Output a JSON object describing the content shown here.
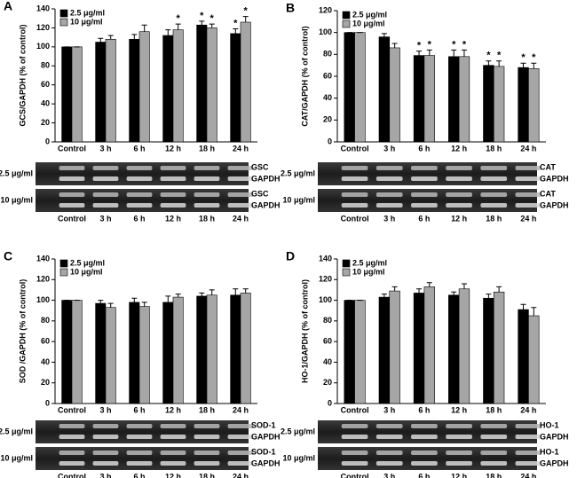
{
  "chart_data": [
    {
      "type": "bar",
      "panel": "A",
      "y_label": "GCS/GAPDH (% of control)",
      "categories": [
        "Control",
        "3 h",
        "6 h",
        "12 h",
        "18 h",
        "24 h"
      ],
      "series": [
        {
          "name": "2.5 μg/ml",
          "color": "#000000",
          "values": [
            100,
            105,
            108,
            112,
            123,
            114
          ],
          "errors": [
            0,
            4,
            5,
            6,
            4,
            5
          ]
        },
        {
          "name": "10 μg/ml",
          "color": "#a6a6a6",
          "values": [
            100,
            108,
            116,
            118,
            120,
            126
          ],
          "errors": [
            0,
            4,
            7,
            6,
            4,
            6
          ]
        }
      ],
      "ylim": [
        0,
        140
      ],
      "yticks": [
        0,
        20,
        40,
        60,
        80,
        100,
        120,
        140
      ],
      "annotations": [
        {
          "text": "*",
          "category": "12 h",
          "series": "10 μg/ml"
        },
        {
          "text": "*",
          "category": "18 h",
          "series": "2.5 μg/ml"
        },
        {
          "text": "*",
          "category": "18 h",
          "series": "10 μg/ml"
        },
        {
          "text": "*",
          "category": "24 h",
          "series": "2.5 μg/ml"
        },
        {
          "text": "*",
          "category": "24 h",
          "series": "10 μg/ml"
        }
      ],
      "blot": {
        "rows": [
          {
            "label": "2.5 μg/ml",
            "bands": [
              "GSC",
              "GAPDH"
            ]
          },
          {
            "label": "10 μg/ml",
            "bands": [
              "GSC",
              "GAPDH"
            ]
          }
        ]
      }
    },
    {
      "type": "bar",
      "panel": "B",
      "y_label": "CAT/GAPDH (% of control)",
      "categories": [
        "Control",
        "3 h",
        "6 h",
        "12 h",
        "18 h",
        "24 h"
      ],
      "series": [
        {
          "name": "2.5 μg/ml",
          "color": "#000000",
          "values": [
            100,
            96,
            79,
            78,
            70,
            68
          ],
          "errors": [
            0,
            3,
            4,
            6,
            4,
            4
          ]
        },
        {
          "name": "10 μg/ml",
          "color": "#a6a6a6",
          "values": [
            100,
            86,
            79,
            78,
            69,
            67
          ],
          "errors": [
            0,
            4,
            5,
            6,
            5,
            5
          ]
        }
      ],
      "ylim": [
        0,
        120
      ],
      "yticks": [
        0,
        20,
        40,
        60,
        80,
        100,
        120
      ],
      "annotations": [
        {
          "text": "*",
          "category": "6 h",
          "series": "2.5 μg/ml"
        },
        {
          "text": "*",
          "category": "6 h",
          "series": "10 μg/ml"
        },
        {
          "text": "*",
          "category": "12 h",
          "series": "2.5 μg/ml"
        },
        {
          "text": "*",
          "category": "12 h",
          "series": "10 μg/ml"
        },
        {
          "text": "*",
          "category": "18 h",
          "series": "2.5 μg/ml"
        },
        {
          "text": "*",
          "category": "18 h",
          "series": "10 μg/ml"
        },
        {
          "text": "*",
          "category": "24 h",
          "series": "2.5 μg/ml"
        },
        {
          "text": "*",
          "category": "24 h",
          "series": "10 μg/ml"
        }
      ],
      "blot": {
        "rows": [
          {
            "label": "2.5 μg/ml",
            "bands": [
              "CAT",
              "GAPDH"
            ]
          },
          {
            "label": "10 μg/ml",
            "bands": [
              "CAT",
              "GAPDH"
            ]
          }
        ]
      }
    },
    {
      "type": "bar",
      "panel": "C",
      "y_label": "SOD /GAPDH (% of control)",
      "categories": [
        "Control",
        "3 h",
        "6 h",
        "12 h",
        "18 h",
        "24 h"
      ],
      "series": [
        {
          "name": "2.5 μg/ml",
          "color": "#000000",
          "values": [
            100,
            97,
            98,
            98,
            104,
            105
          ],
          "errors": [
            0,
            3,
            4,
            6,
            3,
            6
          ]
        },
        {
          "name": "10 μg/ml",
          "color": "#a6a6a6",
          "values": [
            100,
            93,
            94,
            103,
            105,
            107
          ],
          "errors": [
            0,
            4,
            4,
            3,
            5,
            4
          ]
        }
      ],
      "ylim": [
        0,
        140
      ],
      "yticks": [
        0,
        20,
        40,
        60,
        80,
        100,
        120,
        140
      ],
      "annotations": [],
      "blot": {
        "rows": [
          {
            "label": "2.5 μg/ml",
            "bands": [
              "SOD-1",
              "GAPDH"
            ]
          },
          {
            "label": "10 μg/ml",
            "bands": [
              "SOD-1",
              "GAPDH"
            ]
          }
        ]
      }
    },
    {
      "type": "bar",
      "panel": "D",
      "y_label": "HO-1/GAPDH (% of control)",
      "categories": [
        "Control",
        "3 h",
        "6 h",
        "12 h",
        "18 h",
        "24 h"
      ],
      "series": [
        {
          "name": "2.5 μg/ml",
          "color": "#000000",
          "values": [
            100,
            103,
            107,
            105,
            102,
            91
          ],
          "errors": [
            0,
            3,
            4,
            3,
            4,
            5
          ]
        },
        {
          "name": "10 μg/ml",
          "color": "#a6a6a6",
          "values": [
            100,
            109,
            113,
            111,
            108,
            85
          ],
          "errors": [
            0,
            4,
            4,
            5,
            5,
            8
          ]
        }
      ],
      "ylim": [
        0,
        140
      ],
      "yticks": [
        0,
        20,
        40,
        60,
        80,
        100,
        120,
        140
      ],
      "annotations": [],
      "blot": {
        "rows": [
          {
            "label": "2.5 μg/ml",
            "bands": [
              "HO-1",
              "GAPDH"
            ]
          },
          {
            "label": "10 μg/ml",
            "bands": [
              "HO-1",
              "GAPDH"
            ]
          }
        ]
      }
    }
  ]
}
